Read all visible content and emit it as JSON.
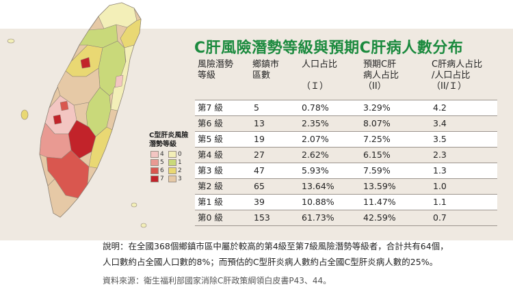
{
  "title": "C肝風險潛勢等級與預期C肝病人數分布",
  "table": {
    "headers": [
      [
        "風險潛勢",
        "等級"
      ],
      [
        "鄉鎮市",
        "區數"
      ],
      [
        "人口占比",
        "",
        "（Ｉ）"
      ],
      [
        "預期C肝",
        "病人占比",
        "（II）"
      ],
      [
        "C肝病人占比",
        "/人口占比",
        "（II/Ｉ）"
      ]
    ],
    "rows": [
      {
        "level": "第7 級",
        "count": "5",
        "pop": "0.78%",
        "patients": "3.29%",
        "ratio": "4.2"
      },
      {
        "level": "第6 級",
        "count": "13",
        "pop": "2.35%",
        "patients": "8.07%",
        "ratio": "3.4"
      },
      {
        "level": "第5 級",
        "count": "19",
        "pop": "2.07%",
        "patients": "7.25%",
        "ratio": "3.5"
      },
      {
        "level": "第4 級",
        "count": "27",
        "pop": "2.62%",
        "patients": "6.15%",
        "ratio": "2.3"
      },
      {
        "level": "第3 級",
        "count": "47",
        "pop": "5.93%",
        "patients": "7.59%",
        "ratio": "1.3"
      },
      {
        "level": "第2 級",
        "count": "65",
        "pop": "13.64%",
        "patients": "13.59%",
        "ratio": "1.0"
      },
      {
        "level": "第1 級",
        "count": "39",
        "pop": "10.88%",
        "patients": "11.47%",
        "ratio": "1.1"
      },
      {
        "level": "第0 級",
        "count": "153",
        "pop": "61.73%",
        "patients": "42.59%",
        "ratio": "0.7"
      }
    ]
  },
  "legend": {
    "title_lines": [
      "C型肝炎風險",
      "潛勢等級"
    ],
    "items": [
      {
        "label": "4",
        "color": "#f3c6c2"
      },
      {
        "label": "0",
        "color": "#f3efb8"
      },
      {
        "label": "5",
        "color": "#e99a92"
      },
      {
        "label": "1",
        "color": "#c9d97a"
      },
      {
        "label": "6",
        "color": "#d9574f"
      },
      {
        "label": "2",
        "color": "#e9d873"
      },
      {
        "label": "7",
        "color": "#c2232a"
      },
      {
        "label": "3",
        "color": "#e6c9a6"
      }
    ]
  },
  "note_lines": [
    "說明：在全國368個鄉鎮市區中屬於較高的第4級至第7級風險潛勢等級者，合計共有64個，",
    "人口數約占全國人口數的8%；而預估的C型肝炎病人數約占全國C型肝炎病人數的25%。"
  ],
  "source": "資料來源：衛生福利部國家消除C肝政策綱領白皮書P43、44。",
  "colors": {
    "title_green": "#1b8a3e",
    "panel_bg": "#efe9e1",
    "row_line": "#9b948d"
  }
}
